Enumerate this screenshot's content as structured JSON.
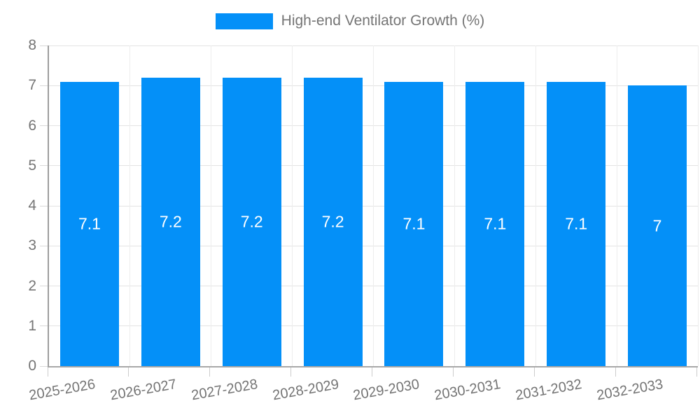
{
  "legend": {
    "label": "High-end Ventilator Growth (%)"
  },
  "chart_data": {
    "type": "bar",
    "title": "High-end Ventilator Growth (%)",
    "categories": [
      "2025-2026",
      "2026-2027",
      "2027-2028",
      "2028-2029",
      "2029-2030",
      "2030-2031",
      "2031-2032",
      "2032-2033"
    ],
    "values": [
      7.1,
      7.2,
      7.2,
      7.2,
      7.1,
      7.1,
      7.1,
      7
    ],
    "bar_labels": [
      "7.1",
      "7.2",
      "7.2",
      "7.2",
      "7.1",
      "7.1",
      "7.1",
      "7"
    ],
    "xlabel": "",
    "ylabel": "",
    "ylim": [
      0,
      8
    ],
    "yticks": [
      0,
      1,
      2,
      3,
      4,
      5,
      6,
      7,
      8
    ],
    "grid": true,
    "legend_position": "top",
    "bar_color": "#0490f8",
    "value_label_color": "#ffffff",
    "axis_text_color": "#757575"
  }
}
